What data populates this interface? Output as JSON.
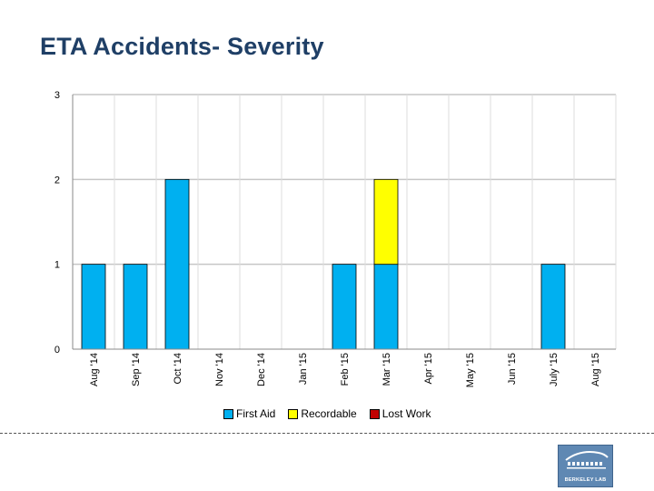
{
  "page": {
    "title": "ETA Accidents- Severity"
  },
  "chart_data": {
    "type": "bar",
    "stacked": true,
    "title": "ETA Accidents- Severity",
    "xlabel": "",
    "ylabel": "",
    "ylim": [
      0,
      3
    ],
    "yticks": [
      0,
      1,
      2,
      3
    ],
    "grid": true,
    "legend_position": "bottom",
    "categories": [
      "Aug '14",
      "Sep '14",
      "Oct '14",
      "Nov '14",
      "Dec '14",
      "Jan '15",
      "Feb '15",
      "Mar '15",
      "Apr '15",
      "May '15",
      "Jun '15",
      "July '15",
      "Aug '15"
    ],
    "series": [
      {
        "name": "First Aid",
        "color": "#00b0f0",
        "values": [
          1,
          1,
          2,
          0,
          0,
          0,
          1,
          1,
          0,
          0,
          0,
          1,
          0
        ]
      },
      {
        "name": "Recordable",
        "color": "#ffff00",
        "values": [
          0,
          0,
          0,
          0,
          0,
          0,
          0,
          1,
          0,
          0,
          0,
          0,
          0
        ]
      },
      {
        "name": "Lost Work",
        "color": "#c00000",
        "values": [
          0,
          0,
          0,
          0,
          0,
          0,
          0,
          0,
          0,
          0,
          0,
          0,
          0
        ]
      }
    ]
  },
  "footer": {
    "logo_text": "BERKELEY LAB"
  }
}
